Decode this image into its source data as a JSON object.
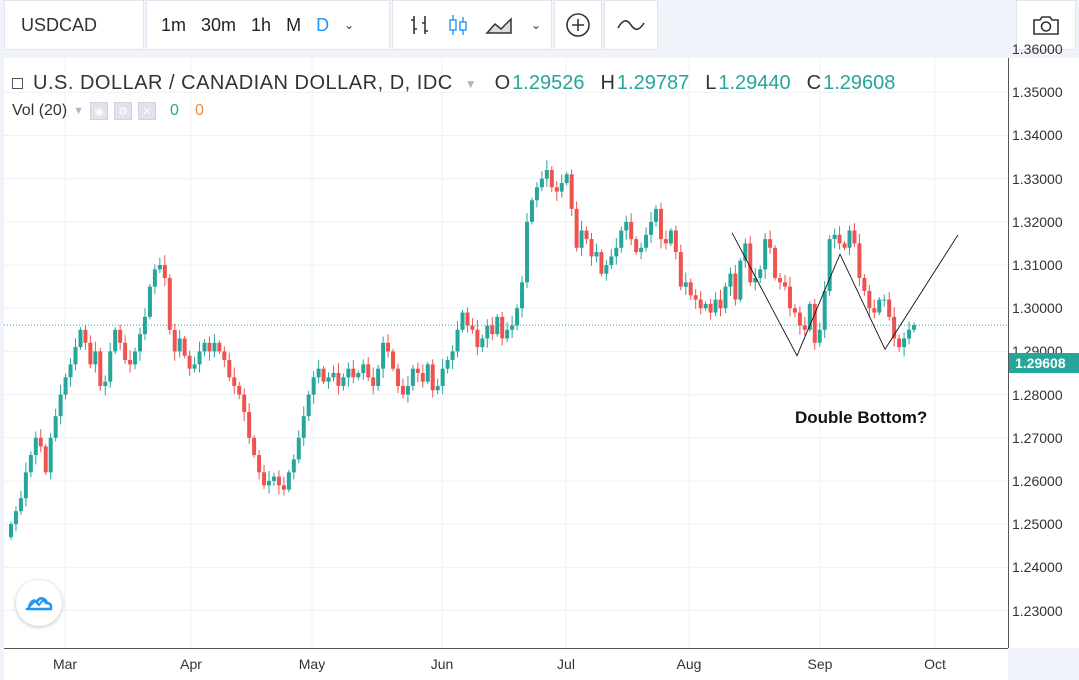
{
  "toolbar": {
    "symbol": "USDCAD",
    "intervals": [
      "1m",
      "30m",
      "1h",
      "M",
      "D"
    ],
    "active_interval": "D"
  },
  "legend": {
    "title": "U.S. DOLLAR / CANADIAN DOLLAR, D, IDC",
    "o_label": "O",
    "o_value": "1.29526",
    "h_label": "H",
    "h_value": "1.29787",
    "l_label": "L",
    "l_value": "1.29440",
    "c_label": "C",
    "c_value": "1.29608",
    "vol_label": "Vol (20)",
    "vol_value_1": "0",
    "vol_value_2": "0"
  },
  "annotation": "Double Bottom?",
  "colors": {
    "up": "#26a69a",
    "down": "#ef5350",
    "accent": "#2196f3"
  },
  "chart_data": {
    "type": "candlestick",
    "title": "U.S. DOLLAR / CANADIAN DOLLAR, D, IDC",
    "y_ticks": [
      "1.36000",
      "1.35000",
      "1.34000",
      "1.33000",
      "1.32000",
      "1.31000",
      "1.30000",
      "1.29000",
      "1.28000",
      "1.27000",
      "1.26000",
      "1.25000",
      "1.24000",
      "1.23000"
    ],
    "ylim": [
      1.2285,
      1.3635
    ],
    "x_ticks": [
      "Mar",
      "Apr",
      "May",
      "Jun",
      "Jul",
      "Aug",
      "Sep",
      "Oct"
    ],
    "last_price": "1.29608",
    "last_price_value": 1.29608,
    "grid": true,
    "closes": [
      1.25,
      1.253,
      1.256,
      1.262,
      1.266,
      1.27,
      1.268,
      1.262,
      1.27,
      1.275,
      1.28,
      1.284,
      1.287,
      1.291,
      1.295,
      1.292,
      1.287,
      1.29,
      1.282,
      1.283,
      1.29,
      1.295,
      1.292,
      1.288,
      1.287,
      1.29,
      1.294,
      1.298,
      1.305,
      1.309,
      1.31,
      1.307,
      1.295,
      1.29,
      1.293,
      1.289,
      1.286,
      1.287,
      1.29,
      1.292,
      1.29,
      1.292,
      1.29,
      1.288,
      1.284,
      1.282,
      1.28,
      1.276,
      1.27,
      1.266,
      1.262,
      1.259,
      1.26,
      1.261,
      1.259,
      1.258,
      1.262,
      1.265,
      1.27,
      1.275,
      1.28,
      1.284,
      1.286,
      1.283,
      1.284,
      1.285,
      1.282,
      1.284,
      1.286,
      1.284,
      1.285,
      1.287,
      1.284,
      1.282,
      1.286,
      1.292,
      1.29,
      1.286,
      1.282,
      1.28,
      1.282,
      1.286,
      1.285,
      1.283,
      1.287,
      1.281,
      1.282,
      1.286,
      1.288,
      1.29,
      1.295,
      1.299,
      1.296,
      1.295,
      1.291,
      1.293,
      1.296,
      1.294,
      1.298,
      1.293,
      1.295,
      1.296,
      1.3,
      1.306,
      1.32,
      1.325,
      1.328,
      1.33,
      1.332,
      1.328,
      1.327,
      1.329,
      1.331,
      1.323,
      1.314,
      1.318,
      1.316,
      1.312,
      1.313,
      1.308,
      1.31,
      1.312,
      1.314,
      1.318,
      1.32,
      1.316,
      1.313,
      1.314,
      1.317,
      1.32,
      1.323,
      1.316,
      1.315,
      1.318,
      1.313,
      1.305,
      1.306,
      1.303,
      1.302,
      1.3,
      1.301,
      1.299,
      1.302,
      1.3,
      1.305,
      1.308,
      1.302,
      1.311,
      1.315,
      1.306,
      1.307,
      1.309,
      1.316,
      1.314,
      1.307,
      1.306,
      1.305,
      1.3,
      1.299,
      1.296,
      1.295,
      1.301,
      1.292,
      1.295,
      1.304,
      1.316,
      1.317,
      1.315,
      1.314,
      1.318,
      1.315,
      1.307,
      1.304,
      1.3,
      1.299,
      1.302,
      1.302,
      1.298,
      1.293,
      1.291,
      1.293,
      1.295,
      1.2961
    ],
    "annotation": "Double Bottom?"
  }
}
